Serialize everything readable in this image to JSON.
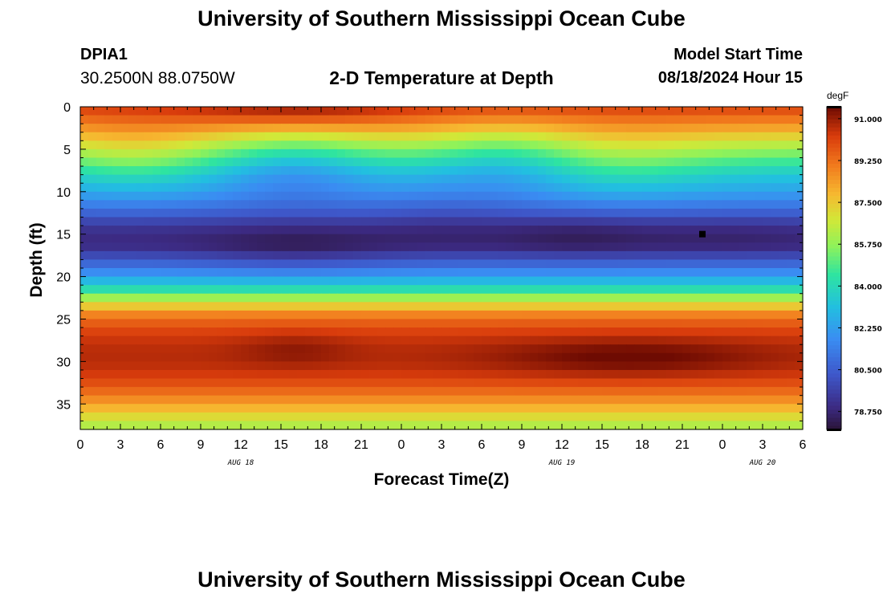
{
  "header": {
    "title": "University of Southern Mississippi Ocean Cube",
    "footer_title": "University of Southern Mississippi Ocean Cube",
    "station_id": "DPIA1",
    "coordinates": "30.2500N  88.0750W",
    "model_start_label": "Model Start Time",
    "model_start_value": "08/18/2024 Hour 15"
  },
  "chart_data": {
    "type": "heatmap",
    "title": "2-D Temperature at Depth",
    "xlabel": "Forecast Time(Z)",
    "ylabel": "Depth (ft)",
    "x_tick_labels": [
      "0",
      "3",
      "6",
      "9",
      "12",
      "15",
      "18",
      "21",
      "0",
      "3",
      "6",
      "9",
      "12",
      "15",
      "18",
      "21",
      "0",
      "3",
      "6"
    ],
    "x_range_hours": [
      0,
      54
    ],
    "date_labels": [
      {
        "label": "AUG 18",
        "hour": 12
      },
      {
        "label": "AUG 19",
        "hour": 36
      },
      {
        "label": "AUG 20",
        "hour": 51
      }
    ],
    "y_ticks": [
      0,
      5,
      10,
      15,
      20,
      25,
      30,
      35
    ],
    "ylim": [
      0,
      38
    ],
    "colorbar": {
      "units": "degF",
      "min": 78.0,
      "max": 91.5,
      "tick_values": [
        91.0,
        89.25,
        87.5,
        85.75,
        84.0,
        82.25,
        80.5,
        78.75
      ],
      "tick_labels": [
        "91.000",
        "89.250",
        "87.500",
        "85.750",
        "84.000",
        "82.250",
        "80.500",
        "78.750"
      ]
    },
    "depth_profile": [
      {
        "depth": 0,
        "degF": 90.2
      },
      {
        "depth": 2,
        "degF": 88.7
      },
      {
        "depth": 4,
        "degF": 86.8
      },
      {
        "depth": 6,
        "degF": 85.0
      },
      {
        "depth": 8,
        "degF": 83.4
      },
      {
        "depth": 10,
        "degF": 82.3
      },
      {
        "depth": 12,
        "degF": 81.0
      },
      {
        "depth": 13.5,
        "degF": 79.8
      },
      {
        "depth": 15,
        "degF": 78.9
      },
      {
        "depth": 16.5,
        "degF": 79.1
      },
      {
        "depth": 18,
        "degF": 80.3
      },
      {
        "depth": 20,
        "degF": 82.3
      },
      {
        "depth": 21.5,
        "degF": 84.2
      },
      {
        "depth": 23,
        "degF": 86.8
      },
      {
        "depth": 24.5,
        "degF": 88.9
      },
      {
        "depth": 26,
        "degF": 90.0
      },
      {
        "depth": 28,
        "degF": 90.6
      },
      {
        "depth": 30,
        "degF": 90.7
      },
      {
        "depth": 32,
        "degF": 90.2
      },
      {
        "depth": 34,
        "degF": 89.1
      },
      {
        "depth": 36,
        "degF": 87.5
      },
      {
        "depth": 38,
        "degF": 85.9
      }
    ],
    "anomalies": [
      {
        "hour": 4,
        "depth": 6,
        "degF": 1.0,
        "sigma_hours": 4,
        "sigma_depth": 3
      },
      {
        "hour": 16,
        "depth": 0.5,
        "degF": 1.0,
        "sigma_hours": 6,
        "sigma_depth": 1.5
      },
      {
        "hour": 16,
        "depth": 7,
        "degF": -1.4,
        "sigma_hours": 4,
        "sigma_depth": 3
      },
      {
        "hour": 16,
        "depth": 17,
        "degF": -0.6,
        "sigma_hours": 5,
        "sigma_depth": 2
      },
      {
        "hour": 27,
        "depth": 12,
        "degF": -0.4,
        "sigma_hours": 4,
        "sigma_depth": 3
      },
      {
        "hour": 32,
        "depth": 6,
        "degF": -1.2,
        "sigma_hours": 4,
        "sigma_depth": 3
      },
      {
        "hour": 37,
        "depth": 15,
        "degF": -0.5,
        "sigma_hours": 4,
        "sigma_depth": 2
      },
      {
        "hour": 40,
        "depth": 7,
        "degF": 0.9,
        "sigma_hours": 5,
        "sigma_depth": 3
      },
      {
        "hour": 48,
        "depth": 15,
        "degF": -0.3,
        "sigma_hours": 5,
        "sigma_depth": 2
      },
      {
        "hour": 16,
        "depth": 28.5,
        "degF": 0.5,
        "sigma_hours": 3,
        "sigma_depth": 1.5
      },
      {
        "hour": 41,
        "depth": 29.5,
        "degF": 0.9,
        "sigma_hours": 7,
        "sigma_depth": 1.6
      }
    ],
    "marker": {
      "hour": 46.5,
      "depth": 15
    }
  }
}
